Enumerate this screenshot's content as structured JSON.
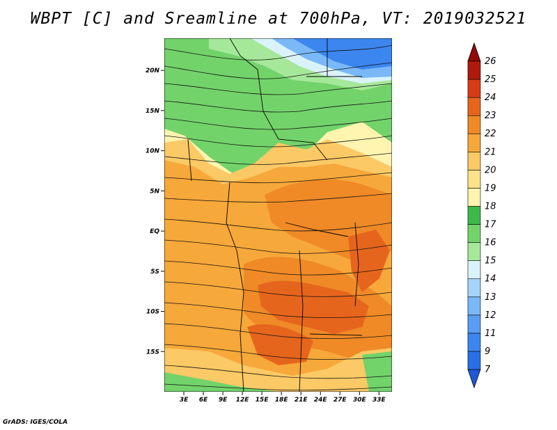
{
  "title": "WBPT [C] and Sreamline at 700hPa, VT: 2019032521",
  "footer": "GrADS: IGES/COLA",
  "map": {
    "lon_range": [
      0,
      35
    ],
    "lat_range": [
      -20,
      24
    ],
    "lat_ticks": [
      {
        "value": 20,
        "label": "20N"
      },
      {
        "value": 15,
        "label": "15N"
      },
      {
        "value": 10,
        "label": "10N"
      },
      {
        "value": 5,
        "label": "5N"
      },
      {
        "value": 0,
        "label": "EQ"
      },
      {
        "value": -5,
        "label": "5S"
      },
      {
        "value": -10,
        "label": "10S"
      },
      {
        "value": -15,
        "label": "15S"
      }
    ],
    "lon_ticks": [
      {
        "value": 3,
        "label": "3E"
      },
      {
        "value": 6,
        "label": "6E"
      },
      {
        "value": 9,
        "label": "9E"
      },
      {
        "value": 12,
        "label": "12E"
      },
      {
        "value": 15,
        "label": "15E"
      },
      {
        "value": 18,
        "label": "18E"
      },
      {
        "value": 21,
        "label": "21E"
      },
      {
        "value": 24,
        "label": "24E"
      },
      {
        "value": 27,
        "label": "27E"
      },
      {
        "value": 30,
        "label": "30E"
      },
      {
        "value": 33,
        "label": "33E"
      }
    ]
  },
  "colorbar": {
    "labels": [
      "7",
      "9",
      "11",
      "12",
      "13",
      "14",
      "15",
      "16",
      "17",
      "18",
      "19",
      "20",
      "21",
      "22",
      "23",
      "24",
      "25",
      "26"
    ],
    "colors": [
      "#1e5ad8",
      "#2b6fe6",
      "#3c86ef",
      "#5a9ef4",
      "#7ab8f7",
      "#a6d3fb",
      "#daf3fb",
      "#a6e89a",
      "#72d36a",
      "#3db94a",
      "#fff4b0",
      "#fde28a",
      "#fbc965",
      "#f7a83a",
      "#ef8a26",
      "#e6651d",
      "#d83c15",
      "#b01a0c",
      "#920a06"
    ]
  }
}
